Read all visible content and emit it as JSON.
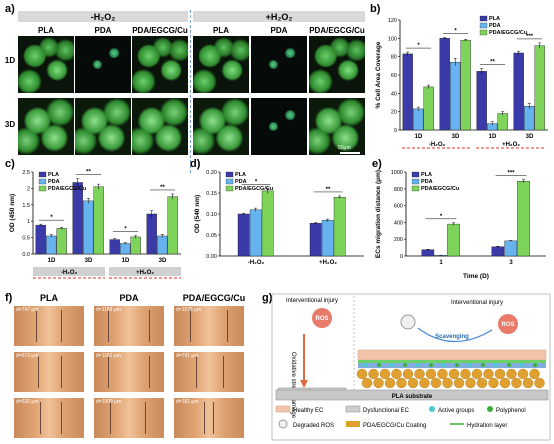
{
  "panels": {
    "a": {
      "label": "a)",
      "cond_neg": "-H₂O₂",
      "cond_pos": "+H₂O₂",
      "columns": [
        "PLA",
        "PDA",
        "PDA/EGCG/Cu",
        "PLA",
        "PDA",
        "PDA/EGCG/Cu"
      ],
      "rows": [
        "1D",
        "3D"
      ],
      "scale": "50μm"
    },
    "b": {
      "label": "b)"
    },
    "c": {
      "label": "c)"
    },
    "d": {
      "label": "d)"
    },
    "e": {
      "label": "e)"
    },
    "f": {
      "label": "f)",
      "columns": [
        "PLA",
        "PDA",
        "PDA/EGCG/Cu"
      ],
      "distances": [
        [
          "d=747 μm",
          "d=1189 μm",
          "d=1075 μm"
        ],
        [
          "d=673 μm",
          "d=1162 μm",
          "d=791 μm"
        ],
        [
          "d=636 μm",
          "d=1009 μm",
          "d=181 μm"
        ]
      ]
    },
    "g": {
      "label": "g)",
      "interventional_injury_left": "Interventional injury",
      "interventional_injury_right": "Interventional injury",
      "ros": "ROS",
      "oxidative": "Oxidative stress damage",
      "scavenging": "Scavenging",
      "substrate": "PLA substrate",
      "legend": [
        "Healthy EC",
        "Dysfunctional EC",
        "Active groups",
        "Polyphenol",
        "Degraded ROS",
        "PDA/EGCG/Cu Coating",
        "Hydration layer"
      ]
    }
  },
  "colors": {
    "PLA": "#3a3aa8",
    "PDA": "#66b3f0",
    "PDA/EGCG/Cu": "#7ed35a",
    "bar_edge": "#222222",
    "sig": "#000000",
    "dash": "#e03030"
  },
  "chart_data": [
    {
      "id": "b",
      "type": "bar",
      "title": "",
      "ylabel": "% Cell Area Coverage",
      "ylim": [
        0,
        120
      ],
      "yticks": [
        0,
        20,
        40,
        60,
        80,
        100,
        120
      ],
      "categories": [
        "1D",
        "3D",
        "1D",
        "3D"
      ],
      "groups": [
        "-H₂O₂",
        "+H₂O₂"
      ],
      "series": [
        {
          "name": "PLA",
          "values": [
            83,
            100,
            64,
            84
          ],
          "err": [
            2,
            1,
            3,
            2
          ]
        },
        {
          "name": "PDA",
          "values": [
            23,
            74,
            7,
            26
          ],
          "err": [
            2,
            4,
            2,
            3
          ]
        },
        {
          "name": "PDA/EGCG/Cu",
          "values": [
            47,
            98,
            18,
            92
          ],
          "err": [
            2,
            1,
            2,
            3
          ]
        }
      ],
      "sig": [
        "*",
        "*",
        "**",
        "***"
      ],
      "legend_position": "top-right"
    },
    {
      "id": "c",
      "type": "bar",
      "title": "",
      "ylabel": "OD (450 nm)",
      "ylim": [
        0.0,
        2.5
      ],
      "yticks": [
        0.0,
        0.5,
        1.0,
        1.5,
        2.0,
        2.5
      ],
      "categories": [
        "1D",
        "3D",
        "1D",
        "3D"
      ],
      "groups": [
        "-H₂O₂",
        "+H₂O₂"
      ],
      "series": [
        {
          "name": "PLA",
          "values": [
            0.88,
            2.18,
            0.44,
            1.22
          ],
          "err": [
            0.03,
            0.12,
            0.03,
            0.1
          ]
        },
        {
          "name": "PDA",
          "values": [
            0.55,
            1.62,
            0.32,
            0.55
          ],
          "err": [
            0.04,
            0.08,
            0.03,
            0.05
          ]
        },
        {
          "name": "PDA/EGCG/Cu",
          "values": [
            0.78,
            2.05,
            0.52,
            1.75
          ],
          "err": [
            0.03,
            0.08,
            0.04,
            0.08
          ]
        }
      ],
      "sig": [
        "*",
        "**",
        "*",
        "**"
      ],
      "legend_position": "top-left"
    },
    {
      "id": "d",
      "type": "bar",
      "title": "",
      "ylabel": "OD (540 nm)",
      "ylim": [
        0.0,
        0.2
      ],
      "yticks": [
        0.0,
        0.05,
        0.1,
        0.15,
        0.2
      ],
      "categories": [
        "-H₂O₂",
        "+H₂O₂"
      ],
      "series": [
        {
          "name": "PLA",
          "values": [
            0.1,
            0.078
          ],
          "err": [
            0.002,
            0.002
          ]
        },
        {
          "name": "PDA",
          "values": [
            0.11,
            0.085
          ],
          "err": [
            0.004,
            0.003
          ]
        },
        {
          "name": "PDA/EGCG/Cu",
          "values": [
            0.155,
            0.14
          ],
          "err": [
            0.006,
            0.003
          ]
        }
      ],
      "sig": [
        "*",
        "**"
      ],
      "legend_position": "top-left"
    },
    {
      "id": "e",
      "type": "bar",
      "title": "",
      "xlabel": "Time (D)",
      "ylabel": "ECs migration distance (μm)",
      "ylim": [
        0,
        1000
      ],
      "yticks": [
        0,
        200,
        400,
        600,
        800,
        1000
      ],
      "categories": [
        "1",
        "3"
      ],
      "series": [
        {
          "name": "PLA",
          "values": [
            75,
            110
          ],
          "err": [
            5,
            6
          ]
        },
        {
          "name": "PDA",
          "values": [
            8,
            180
          ],
          "err": [
            2,
            5
          ]
        },
        {
          "name": "PDA/EGCG/Cu",
          "values": [
            380,
            890
          ],
          "err": [
            15,
            20
          ]
        }
      ],
      "sig": [
        "*",
        "***"
      ],
      "legend_position": "top-left"
    }
  ]
}
